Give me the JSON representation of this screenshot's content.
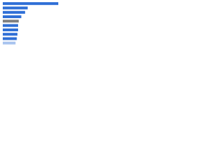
{
  "chart_data": {
    "type": "bar",
    "orientation": "horizontal",
    "categories": [
      null,
      null,
      null,
      null,
      null,
      null,
      null,
      null,
      null,
      null
    ],
    "values": [
      87,
      39,
      35,
      29,
      25,
      24,
      24,
      23,
      22,
      20
    ],
    "colors": [
      "#2f6fd6",
      "#2f6fd6",
      "#2f6fd6",
      "#2f6fd6",
      "#7f7f7f",
      "#2f6fd6",
      "#2f6fd6",
      "#2f6fd6",
      "#2f6fd6",
      "#a9c4ef"
    ],
    "xlim": [
      0,
      100
    ]
  }
}
